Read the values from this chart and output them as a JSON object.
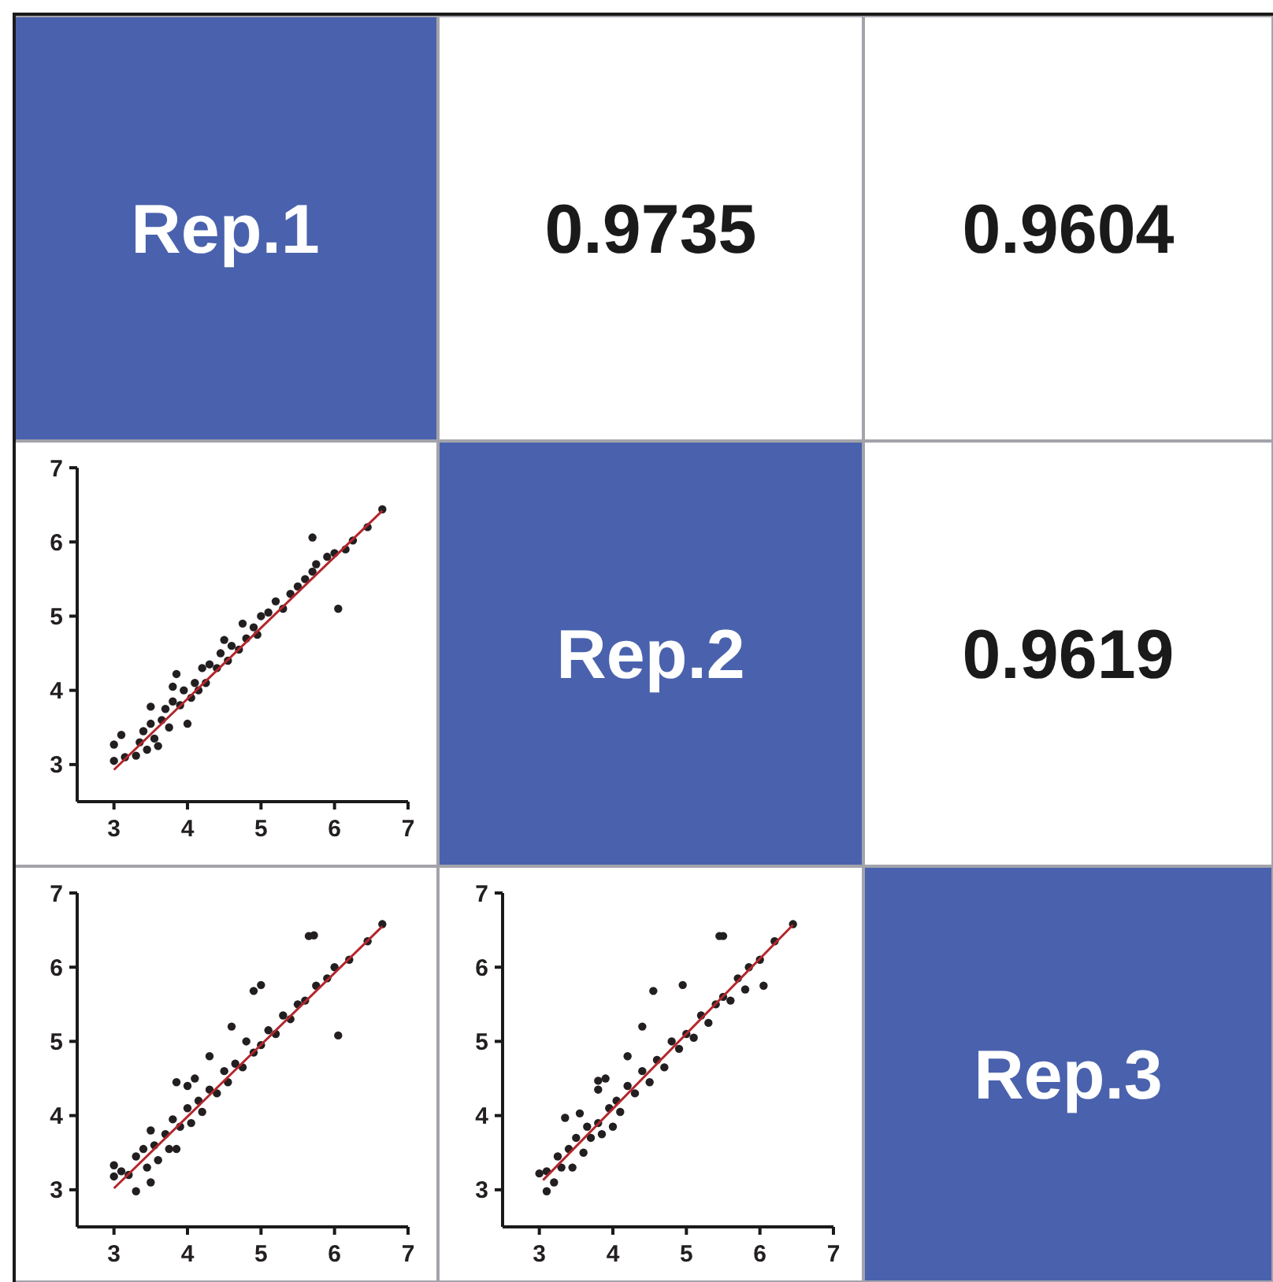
{
  "chart_data": [
    {
      "type": "other",
      "annotations": [
        "Rep.1",
        "0.9735",
        "0.9604",
        "Rep.2",
        "0.9619",
        "Rep.3"
      ]
    },
    {
      "type": "scatter",
      "xlim": [
        2.5,
        7
      ],
      "ylim": [
        2.5,
        7
      ],
      "xticks": [
        3,
        4,
        5,
        6,
        7
      ],
      "yticks": [
        3,
        4,
        5,
        6,
        7
      ],
      "series": [
        {
          "marker": "circle",
          "color": "#231f20",
          "x": [
            3.0,
            3.0,
            3.1,
            3.15,
            3.3,
            3.35,
            3.4,
            3.45,
            3.5,
            3.5,
            3.55,
            3.6,
            3.65,
            3.7,
            3.75,
            3.8,
            3.8,
            3.85,
            3.9,
            3.95,
            4.0,
            4.05,
            4.1,
            4.15,
            4.2,
            4.25,
            4.3,
            4.4,
            4.45,
            4.5,
            4.55,
            4.6,
            4.7,
            4.75,
            4.8,
            4.9,
            4.95,
            5.0,
            5.1,
            5.2,
            5.3,
            5.4,
            5.5,
            5.6,
            5.7,
            5.7,
            5.75,
            5.9,
            6.0,
            6.05,
            6.15,
            6.25,
            6.45,
            6.65
          ],
          "values": [
            3.05,
            3.27,
            3.4,
            3.1,
            3.12,
            3.3,
            3.45,
            3.2,
            3.55,
            3.78,
            3.35,
            3.25,
            3.6,
            3.75,
            3.5,
            3.85,
            4.05,
            4.22,
            3.8,
            4.0,
            3.55,
            3.9,
            4.1,
            4.0,
            4.3,
            4.1,
            4.35,
            4.3,
            4.5,
            4.68,
            4.4,
            4.6,
            4.55,
            4.9,
            4.7,
            4.85,
            4.75,
            5.0,
            5.05,
            5.2,
            5.1,
            5.3,
            5.4,
            5.5,
            5.6,
            6.06,
            5.7,
            5.8,
            5.85,
            5.1,
            5.9,
            6.02,
            6.2,
            6.44
          ]
        },
        {
          "type": "line",
          "color": "#b3262c",
          "x": [
            3.0,
            6.65
          ],
          "values": [
            2.93,
            6.42
          ]
        }
      ]
    },
    {
      "type": "scatter",
      "xlim": [
        2.5,
        7
      ],
      "ylim": [
        2.5,
        7
      ],
      "xticks": [
        3,
        4,
        5,
        6,
        7
      ],
      "yticks": [
        3,
        4,
        5,
        6,
        7
      ],
      "series": [
        {
          "marker": "circle",
          "color": "#231f20",
          "x": [
            3.0,
            3.0,
            3.1,
            3.2,
            3.3,
            3.3,
            3.4,
            3.45,
            3.5,
            3.5,
            3.55,
            3.6,
            3.7,
            3.75,
            3.8,
            3.85,
            3.85,
            3.9,
            4.0,
            4.0,
            4.05,
            4.1,
            4.15,
            4.2,
            4.3,
            4.3,
            4.4,
            4.5,
            4.55,
            4.6,
            4.65,
            4.75,
            4.8,
            4.9,
            4.9,
            5.0,
            5.0,
            5.1,
            5.2,
            5.3,
            5.4,
            5.5,
            5.6,
            5.65,
            5.72,
            5.75,
            5.9,
            6.0,
            6.05,
            6.2,
            6.45,
            6.65
          ],
          "values": [
            3.18,
            3.33,
            3.25,
            3.2,
            2.98,
            3.45,
            3.55,
            3.3,
            3.1,
            3.8,
            3.6,
            3.4,
            3.75,
            3.55,
            3.95,
            3.55,
            4.45,
            3.85,
            4.1,
            4.4,
            3.9,
            4.5,
            4.2,
            4.05,
            4.8,
            4.35,
            4.3,
            4.6,
            4.45,
            5.2,
            4.7,
            4.65,
            5.0,
            4.85,
            5.68,
            5.76,
            4.95,
            5.15,
            5.1,
            5.35,
            5.3,
            5.5,
            5.55,
            6.42,
            6.43,
            5.75,
            5.85,
            6.0,
            5.08,
            6.1,
            6.35,
            6.58
          ]
        },
        {
          "type": "line",
          "color": "#b3262c",
          "x": [
            3.0,
            6.65
          ],
          "values": [
            3.02,
            6.55
          ]
        }
      ]
    },
    {
      "type": "scatter",
      "xlim": [
        2.5,
        7
      ],
      "ylim": [
        2.5,
        7
      ],
      "xticks": [
        3,
        4,
        5,
        6,
        7
      ],
      "yticks": [
        3,
        4,
        5,
        6,
        7
      ],
      "series": [
        {
          "marker": "circle",
          "color": "#231f20",
          "x": [
            3.0,
            3.1,
            3.1,
            3.2,
            3.25,
            3.3,
            3.35,
            3.4,
            3.45,
            3.5,
            3.55,
            3.6,
            3.65,
            3.7,
            3.8,
            3.8,
            3.8,
            3.85,
            3.9,
            3.95,
            4.0,
            4.05,
            4.1,
            4.2,
            4.2,
            4.3,
            4.4,
            4.4,
            4.5,
            4.55,
            4.6,
            4.7,
            4.8,
            4.9,
            4.95,
            5.0,
            5.1,
            5.2,
            5.3,
            5.4,
            5.45,
            5.5,
            5.5,
            5.6,
            5.7,
            5.8,
            5.85,
            6.0,
            6.05,
            6.2,
            6.45
          ],
          "values": [
            3.22,
            2.98,
            3.25,
            3.1,
            3.45,
            3.3,
            3.97,
            3.55,
            3.3,
            3.7,
            4.03,
            3.5,
            3.85,
            3.7,
            4.47,
            4.35,
            3.9,
            3.75,
            4.5,
            4.1,
            3.85,
            4.2,
            4.05,
            4.8,
            4.4,
            4.3,
            5.2,
            4.6,
            4.45,
            5.68,
            4.75,
            4.65,
            5.0,
            4.9,
            5.76,
            5.1,
            5.05,
            5.35,
            5.25,
            5.5,
            6.42,
            6.42,
            5.6,
            5.55,
            5.85,
            5.7,
            6.0,
            6.1,
            5.75,
            6.35,
            6.58
          ]
        },
        {
          "type": "line",
          "color": "#b3262c",
          "x": [
            3.05,
            6.45
          ],
          "values": [
            3.13,
            6.57
          ]
        }
      ]
    }
  ]
}
